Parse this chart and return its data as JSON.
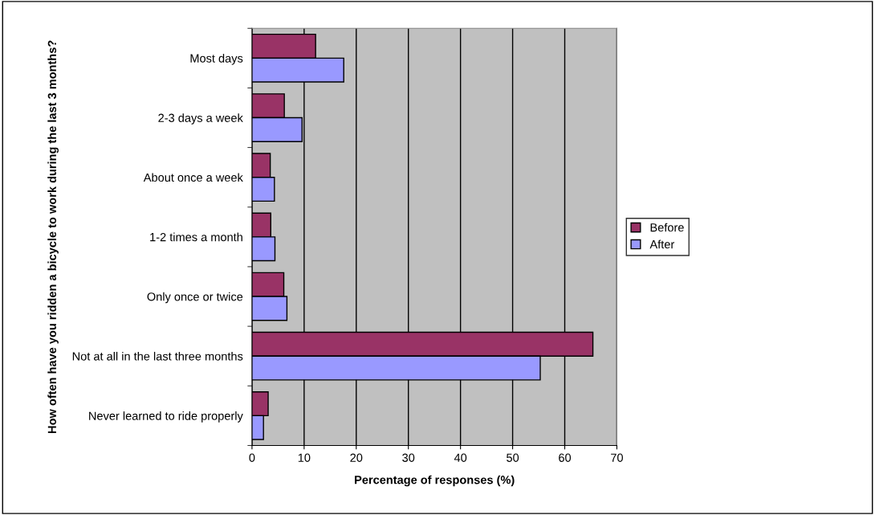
{
  "chart_data": {
    "type": "bar",
    "orientation": "horizontal",
    "xlabel": "Percentage of responses (%)",
    "ylabel": "How often have you ridden a bicycle to work during the last 3 months?",
    "categories": [
      "Most days",
      "2-3 days a week",
      "About once a week",
      "1-2 times a month",
      "Only once or twice",
      "Not at all in the last three months",
      "Never learned to ride properly"
    ],
    "series": [
      {
        "name": "Before",
        "color": "#993366",
        "values": [
          12.2,
          6.2,
          3.5,
          3.6,
          6.1,
          65.4,
          3.1
        ]
      },
      {
        "name": "After",
        "color": "#9999ff",
        "values": [
          17.6,
          9.6,
          4.3,
          4.4,
          6.7,
          55.3,
          2.2
        ]
      }
    ],
    "xlim": [
      0,
      70
    ],
    "xticks": [
      0,
      10,
      20,
      30,
      40,
      50,
      60,
      70
    ],
    "grid": "x",
    "legend": "right"
  }
}
